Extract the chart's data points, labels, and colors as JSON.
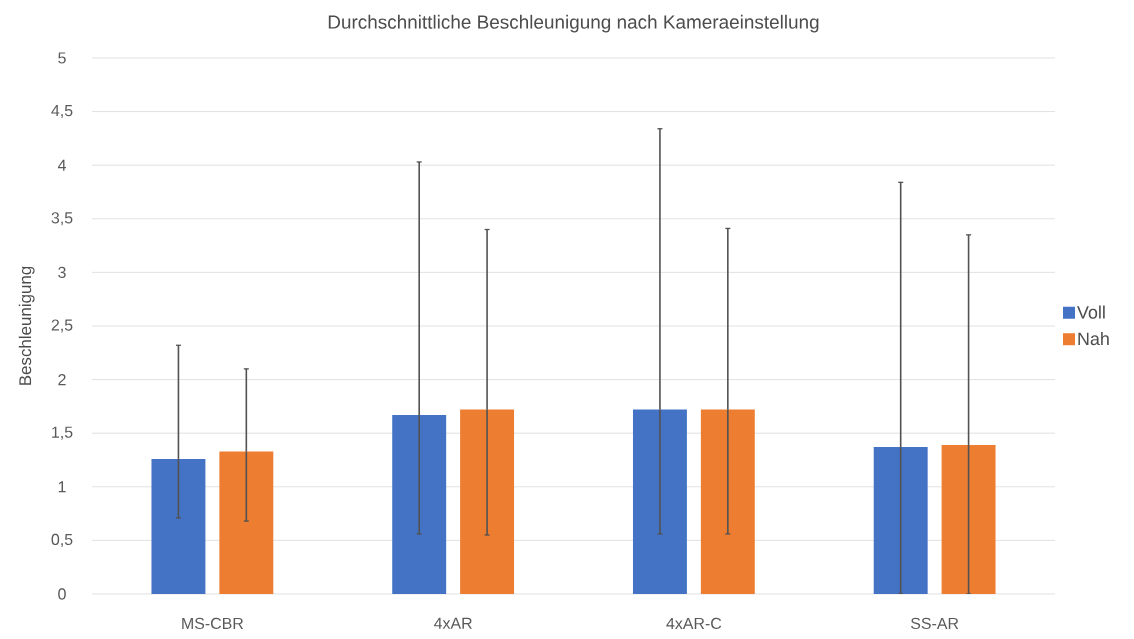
{
  "chart_data": {
    "type": "bar",
    "title": "Durchschnittliche Beschleunigung nach Kameraeinstellung",
    "ylabel": "Beschleunigung",
    "categories": [
      "MS-CBR",
      "4xAR",
      "4xAR-C",
      "SS-AR"
    ],
    "series": [
      {
        "name": "Voll",
        "color": "#4472c4",
        "values": [
          1.26,
          1.67,
          1.72,
          1.37
        ],
        "errors": [
          [
            0.71,
            2.32
          ],
          [
            0.56,
            4.03
          ],
          [
            0.56,
            4.34
          ],
          [
            0,
            3.84
          ]
        ]
      },
      {
        "name": "Nah",
        "color": "#ed7d31",
        "values": [
          1.33,
          1.72,
          1.72,
          1.39
        ],
        "errors": [
          [
            0.68,
            2.1
          ],
          [
            0.55,
            3.4
          ],
          [
            0.56,
            3.41
          ],
          [
            0,
            3.35
          ]
        ]
      }
    ],
    "ylim": [
      0,
      5
    ],
    "yticks": [
      {
        "value": 0,
        "label": "0"
      },
      {
        "value": 0.5,
        "label": "0,5"
      },
      {
        "value": 1,
        "label": "1"
      },
      {
        "value": 1.5,
        "label": "1,5"
      },
      {
        "value": 2,
        "label": "2"
      },
      {
        "value": 2.5,
        "label": "2,5"
      },
      {
        "value": 3,
        "label": "3"
      },
      {
        "value": 3.5,
        "label": "3,5"
      },
      {
        "value": 4,
        "label": "4"
      },
      {
        "value": 4.5,
        "label": "4,5"
      },
      {
        "value": 5,
        "label": "5"
      }
    ],
    "grid": "y",
    "legend": "right"
  }
}
